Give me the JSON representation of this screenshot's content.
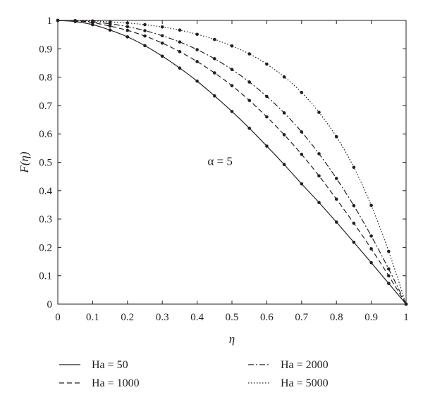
{
  "chart_data": {
    "type": "line",
    "xlabel": "η",
    "ylabel": "F(η)",
    "xlim": [
      0,
      1
    ],
    "ylim": [
      0,
      1
    ],
    "x_ticks": [
      "0",
      "0.1",
      "0.2",
      "0.3",
      "0.4",
      "0.5",
      "0.6",
      "0.7",
      "0.8",
      "0.9",
      "1"
    ],
    "y_ticks": [
      "0",
      "0.1",
      "0.2",
      "0.3",
      "0.4",
      "0.5",
      "0.6",
      "0.7",
      "0.8",
      "0.9",
      "1"
    ],
    "annotation": "α = 5",
    "legend_placement": "below",
    "grid": false,
    "series": [
      {
        "name": "Ha = 50",
        "style": "solid",
        "x": [
          0,
          0.05,
          0.1,
          0.15,
          0.2,
          0.25,
          0.3,
          0.35,
          0.4,
          0.45,
          0.5,
          0.55,
          0.6,
          0.65,
          0.7,
          0.75,
          0.8,
          0.85,
          0.9,
          0.95,
          1
        ],
        "values": [
          1,
          0.996,
          0.985,
          0.966,
          0.942,
          0.911,
          0.874,
          0.832,
          0.786,
          0.734,
          0.679,
          0.62,
          0.557,
          0.492,
          0.424,
          0.358,
          0.289,
          0.218,
          0.146,
          0.073,
          0
        ]
      },
      {
        "name": "Ha = 1000",
        "style": "dashed",
        "x": [
          0,
          0.05,
          0.1,
          0.15,
          0.2,
          0.25,
          0.3,
          0.35,
          0.4,
          0.45,
          0.5,
          0.55,
          0.6,
          0.65,
          0.7,
          0.75,
          0.8,
          0.85,
          0.9,
          0.95,
          1
        ],
        "values": [
          1,
          0.998,
          0.992,
          0.98,
          0.965,
          0.945,
          0.92,
          0.89,
          0.855,
          0.815,
          0.77,
          0.718,
          0.66,
          0.597,
          0.528,
          0.452,
          0.37,
          0.285,
          0.195,
          0.1,
          0
        ]
      },
      {
        "name": "Ha = 2000",
        "style": "dashdot",
        "x": [
          0,
          0.05,
          0.1,
          0.15,
          0.2,
          0.25,
          0.3,
          0.35,
          0.4,
          0.45,
          0.5,
          0.55,
          0.6,
          0.65,
          0.7,
          0.75,
          0.8,
          0.85,
          0.9,
          0.95,
          1
        ],
        "values": [
          1,
          0.999,
          0.995,
          0.988,
          0.978,
          0.964,
          0.946,
          0.924,
          0.897,
          0.865,
          0.827,
          0.783,
          0.732,
          0.674,
          0.607,
          0.53,
          0.443,
          0.347,
          0.24,
          0.124,
          0
        ]
      },
      {
        "name": "Ha = 5000",
        "style": "dotted",
        "x": [
          0,
          0.05,
          0.1,
          0.15,
          0.2,
          0.25,
          0.3,
          0.35,
          0.4,
          0.45,
          0.5,
          0.55,
          0.6,
          0.65,
          0.7,
          0.75,
          0.8,
          0.85,
          0.9,
          0.95,
          1
        ],
        "values": [
          1,
          0.999,
          0.998,
          0.995,
          0.991,
          0.985,
          0.977,
          0.966,
          0.951,
          0.933,
          0.91,
          0.882,
          0.846,
          0.801,
          0.746,
          0.676,
          0.59,
          0.482,
          0.348,
          0.186,
          0
        ]
      }
    ]
  }
}
